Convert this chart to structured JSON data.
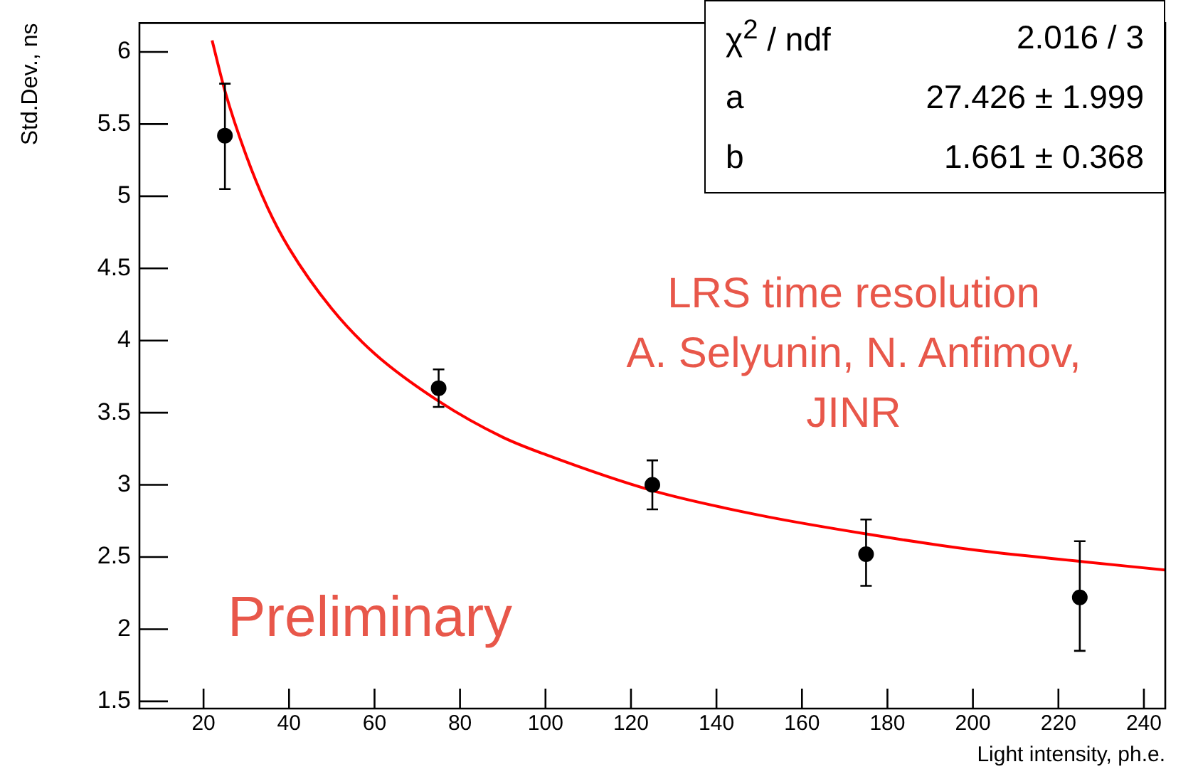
{
  "chart_data": {
    "type": "scatter",
    "xlabel": "Light intensity, ph.e.",
    "ylabel": "Std.Dev., ns",
    "xlim": [
      5,
      245
    ],
    "xticks": [
      20,
      40,
      60,
      80,
      100,
      120,
      140,
      160,
      180,
      200,
      220,
      240
    ],
    "ylim": [
      1.45,
      6.2
    ],
    "yticks": [
      1.5,
      2,
      2.5,
      3,
      3.5,
      4,
      4.5,
      5,
      5.5,
      6
    ],
    "grid": false,
    "legend": false,
    "marker": "circle",
    "series": [
      {
        "color": "#000000",
        "x": [
          25,
          75,
          125,
          175,
          225
        ],
        "values": [
          5.42,
          3.67,
          3.0,
          2.52,
          2.22
        ],
        "errors": [
          [
            5.05,
            5.78
          ],
          [
            3.54,
            3.8
          ],
          [
            2.83,
            3.17
          ],
          [
            2.3,
            2.76
          ],
          [
            1.85,
            2.61
          ]
        ]
      },
      {
        "type": "line",
        "marker": "none",
        "color": "#ff0000",
        "x": [
          22,
          25,
          30,
          35,
          40,
          50,
          60,
          75,
          90,
          100,
          125,
          150,
          175,
          200,
          225,
          245
        ],
        "values": [
          6.08,
          5.73,
          5.28,
          4.92,
          4.64,
          4.22,
          3.91,
          3.58,
          3.33,
          3.21,
          2.96,
          2.79,
          2.66,
          2.55,
          2.47,
          2.41
        ]
      }
    ],
    "annotations": [
      "χ$^{2}$ / ndf",
      "2.016 / 3",
      "a",
      "27.426 ± 1.999",
      "b",
      "1.661 ± 0.368",
      "LRS time resolution\nA. Selyunin, N. Anfimov,\nJINR",
      "Preliminary"
    ]
  }
}
